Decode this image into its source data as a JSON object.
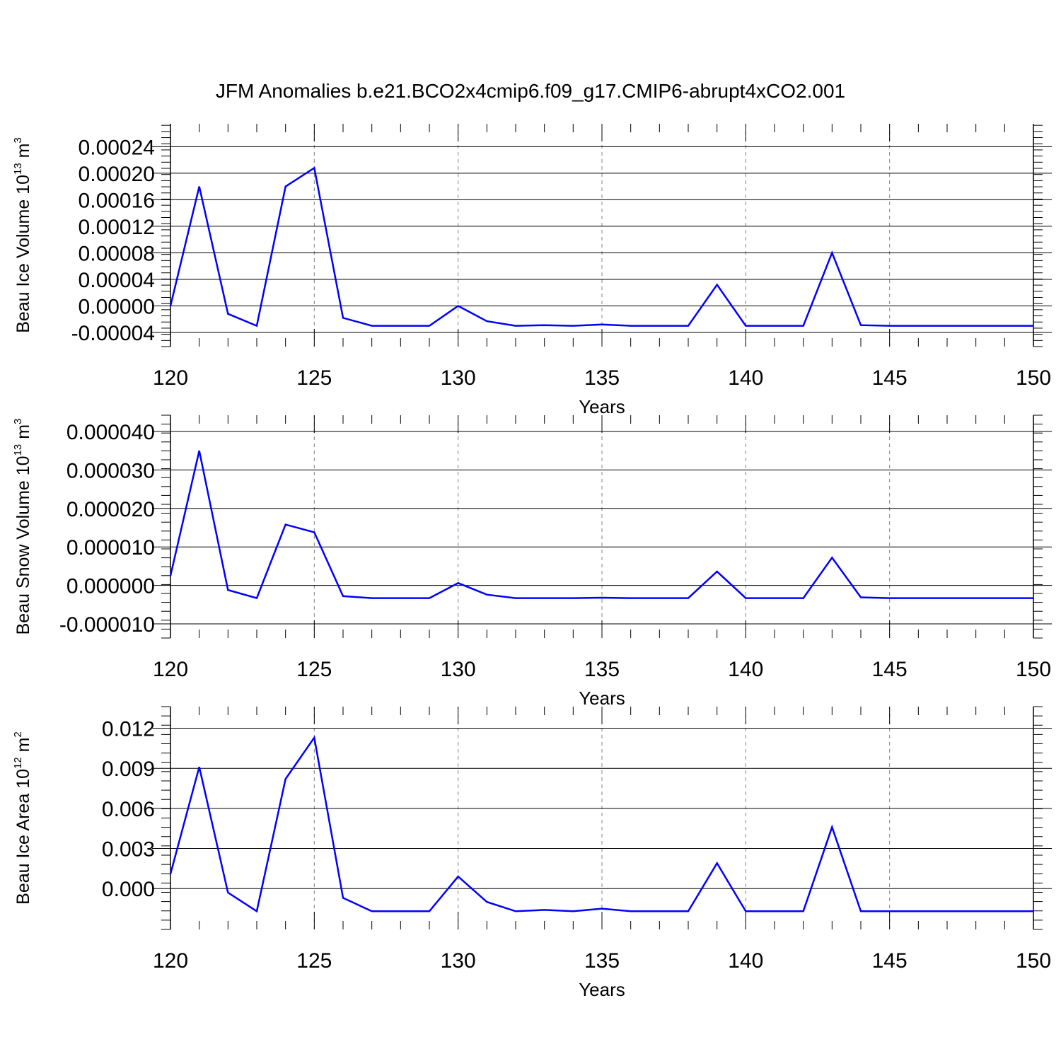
{
  "title": "JFM Anomalies b.e21.BCO2x4cmip6.f09_g17.CMIP6-abrupt4xCO2.001",
  "colors": {
    "line": "#0000ff",
    "axis": "#000000",
    "grid": "#808080"
  },
  "chart_data": [
    {
      "type": "line",
      "ylabel": {
        "text": "Beau Ice Volume 10",
        "exp": "13",
        "unit": " m",
        "unit_exp": "3"
      },
      "xlabel": "Years",
      "xlim": [
        120,
        150
      ],
      "ylim": [
        -4e-05,
        0.00025
      ],
      "x_ticks": [
        "120",
        "125",
        "130",
        "135",
        "140",
        "145",
        "150"
      ],
      "y_ticks": [
        {
          "value": -4e-05,
          "label": "-0.00004"
        },
        {
          "value": 0.0,
          "label": "0.00000"
        },
        {
          "value": 4e-05,
          "label": "0.00004"
        },
        {
          "value": 8e-05,
          "label": "0.00008"
        },
        {
          "value": 0.00012,
          "label": "0.00012"
        },
        {
          "value": 0.00016,
          "label": "0.00016"
        },
        {
          "value": 0.0002,
          "label": "0.00020"
        },
        {
          "value": 0.00024,
          "label": "0.00024"
        }
      ],
      "grid": "vertical dashed",
      "x": [
        120,
        121,
        122,
        123,
        124,
        125,
        126,
        127,
        128,
        129,
        130,
        131,
        132,
        133,
        134,
        135,
        136,
        137,
        138,
        139,
        140,
        141,
        142,
        143,
        144,
        145,
        146,
        147,
        148,
        149,
        150
      ],
      "values": [
        0.0,
        0.00018,
        -1.2e-05,
        -3e-05,
        0.00018,
        0.000208,
        -1.8e-05,
        -3e-05,
        -3e-05,
        -3e-05,
        0.0,
        -2.3e-05,
        -3e-05,
        -2.9e-05,
        -3e-05,
        -2.8e-05,
        -3e-05,
        -3e-05,
        -3e-05,
        3.2e-05,
        -3e-05,
        -3e-05,
        -3e-05,
        8e-05,
        -2.9e-05,
        -3e-05,
        -3e-05,
        -3e-05,
        -3e-05,
        -3e-05,
        -3e-05
      ]
    },
    {
      "type": "line",
      "ylabel": {
        "text": "Beau Snow Volume 10",
        "exp": "13",
        "unit": " m",
        "unit_exp": "3"
      },
      "xlabel": "Years",
      "xlim": [
        120,
        150
      ],
      "ylim": [
        -1e-05,
        4e-05
      ],
      "x_ticks": [
        "120",
        "125",
        "130",
        "135",
        "140",
        "145",
        "150"
      ],
      "y_ticks": [
        {
          "value": -1e-05,
          "label": "-0.000010"
        },
        {
          "value": 0.0,
          "label": "0.000000"
        },
        {
          "value": 1e-05,
          "label": "0.000010"
        },
        {
          "value": 2e-05,
          "label": "0.000020"
        },
        {
          "value": 3e-05,
          "label": "0.000030"
        },
        {
          "value": 4e-05,
          "label": "0.000040"
        }
      ],
      "grid": "vertical dashed",
      "x": [
        120,
        121,
        122,
        123,
        124,
        125,
        126,
        127,
        128,
        129,
        130,
        131,
        132,
        133,
        134,
        135,
        136,
        137,
        138,
        139,
        140,
        141,
        142,
        143,
        144,
        145,
        146,
        147,
        148,
        149,
        150
      ],
      "values": [
        2.5e-06,
        3.5e-05,
        -1.2e-06,
        -3.3e-06,
        1.58e-05,
        1.38e-05,
        -2.8e-06,
        -3.3e-06,
        -3.3e-06,
        -3.3e-06,
        6e-07,
        -2.4e-06,
        -3.3e-06,
        -3.3e-06,
        -3.3e-06,
        -3.2e-06,
        -3.3e-06,
        -3.3e-06,
        -3.3e-06,
        3.6e-06,
        -3.3e-06,
        -3.3e-06,
        -3.3e-06,
        7.2e-06,
        -3.1e-06,
        -3.3e-06,
        -3.3e-06,
        -3.3e-06,
        -3.3e-06,
        -3.3e-06,
        -3.3e-06
      ]
    },
    {
      "type": "line",
      "ylabel": {
        "text": "Beau Ice Area 10",
        "exp": "12",
        "unit": " m",
        "unit_exp": "2"
      },
      "xlabel": "Years",
      "xlim": [
        120,
        150
      ],
      "ylim": [
        -0.002,
        0.0124
      ],
      "x_ticks": [
        "120",
        "125",
        "130",
        "135",
        "140",
        "145",
        "150"
      ],
      "y_ticks": [
        {
          "value": 0.0,
          "label": "0.000"
        },
        {
          "value": 0.003,
          "label": "0.003"
        },
        {
          "value": 0.006,
          "label": "0.006"
        },
        {
          "value": 0.009,
          "label": "0.009"
        },
        {
          "value": 0.012,
          "label": "0.012"
        }
      ],
      "grid": "vertical dashed",
      "x": [
        120,
        121,
        122,
        123,
        124,
        125,
        126,
        127,
        128,
        129,
        130,
        131,
        132,
        133,
        134,
        135,
        136,
        137,
        138,
        139,
        140,
        141,
        142,
        143,
        144,
        145,
        146,
        147,
        148,
        149,
        150
      ],
      "values": [
        0.0011,
        0.0091,
        -0.0003,
        -0.0017,
        0.0082,
        0.0113,
        -0.0007,
        -0.0017,
        -0.0017,
        -0.0017,
        0.0009,
        -0.001,
        -0.0017,
        -0.0016,
        -0.0017,
        -0.0015,
        -0.0017,
        -0.0017,
        -0.0017,
        0.0019,
        -0.0017,
        -0.0017,
        -0.0017,
        0.0046,
        -0.0017,
        -0.0017,
        -0.0017,
        -0.0017,
        -0.0017,
        -0.0017,
        -0.0017
      ]
    }
  ]
}
